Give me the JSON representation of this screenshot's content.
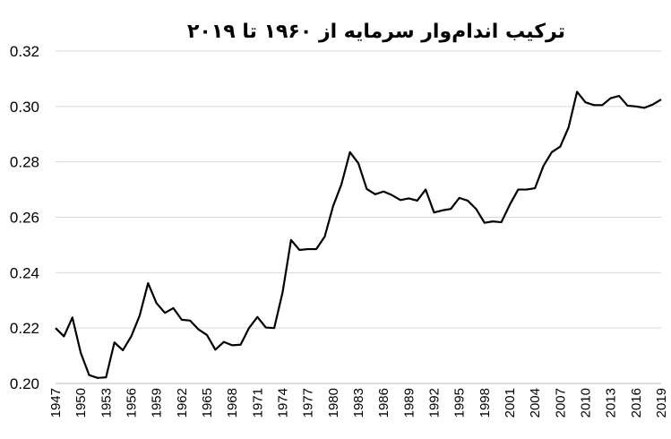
{
  "chart_data": {
    "type": "line",
    "title": "ترکیب اندام‌وار سرمایه از ۱۹۶۰ تا ۲۰۱۹",
    "xlabel": "",
    "ylabel": "",
    "ylim": [
      0.2,
      0.32
    ],
    "yticks": [
      "0.20",
      "0.22",
      "0.24",
      "0.26",
      "0.28",
      "0.30",
      "0.32"
    ],
    "xticks": [
      "1947",
      "1950",
      "1953",
      "1956",
      "1959",
      "1962",
      "1965",
      "1968",
      "1971",
      "1974",
      "1977",
      "1980",
      "1983",
      "1986",
      "1989",
      "1992",
      "1995",
      "1998",
      "2001",
      "2004",
      "2007",
      "2010",
      "2013",
      "2016",
      "2019"
    ],
    "grid": true,
    "legend": "none",
    "x": [
      1947,
      1948,
      1949,
      1950,
      1951,
      1952,
      1953,
      1954,
      1955,
      1956,
      1957,
      1958,
      1959,
      1960,
      1961,
      1962,
      1963,
      1964,
      1965,
      1966,
      1967,
      1968,
      1969,
      1970,
      1971,
      1972,
      1973,
      1974,
      1975,
      1976,
      1977,
      1978,
      1979,
      1980,
      1981,
      1982,
      1983,
      1984,
      1985,
      1986,
      1987,
      1988,
      1989,
      1990,
      1991,
      1992,
      1993,
      1994,
      1995,
      1996,
      1997,
      1998,
      1999,
      2000,
      2001,
      2002,
      2003,
      2004,
      2005,
      2006,
      2007,
      2008,
      2009,
      2010,
      2011,
      2012,
      2013,
      2014,
      2015,
      2016,
      2017,
      2018,
      2019
    ],
    "values": [
      0.22,
      0.217,
      0.2238,
      0.211,
      0.203,
      0.202,
      0.2022,
      0.2148,
      0.212,
      0.217,
      0.2245,
      0.2362,
      0.229,
      0.2255,
      0.2272,
      0.223,
      0.2227,
      0.2195,
      0.2175,
      0.2122,
      0.215,
      0.2138,
      0.214,
      0.22,
      0.224,
      0.2202,
      0.22,
      0.233,
      0.2518,
      0.2482,
      0.2485,
      0.2485,
      0.253,
      0.264,
      0.272,
      0.2835,
      0.2795,
      0.2702,
      0.2683,
      0.2693,
      0.268,
      0.2662,
      0.2668,
      0.266,
      0.27,
      0.2617,
      0.2625,
      0.263,
      0.267,
      0.266,
      0.263,
      0.258,
      0.2585,
      0.2582,
      0.2645,
      0.27,
      0.27,
      0.2705,
      0.2785,
      0.2835,
      0.2855,
      0.2925,
      0.3053,
      0.3015,
      0.3005,
      0.3005,
      0.303,
      0.3038,
      0.3003,
      0.3,
      0.2995,
      0.3007,
      0.3025
    ]
  }
}
